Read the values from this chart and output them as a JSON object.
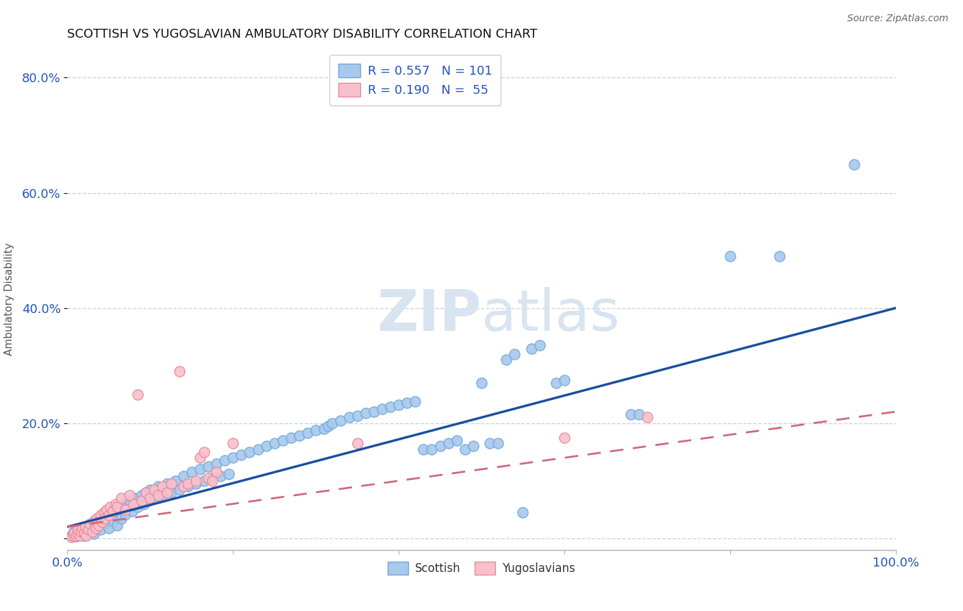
{
  "title": "SCOTTISH VS YUGOSLAVIAN AMBULATORY DISABILITY CORRELATION CHART",
  "source": "Source: ZipAtlas.com",
  "ylabel": "Ambulatory Disability",
  "xlim": [
    0,
    1.0
  ],
  "ylim": [
    -0.02,
    0.85
  ],
  "legend_R_scottish": "R = 0.557",
  "legend_N_scottish": "N = 101",
  "legend_R_yugo": "R = 0.190",
  "legend_N_yugo": "N =  55",
  "scottish_color": "#a8c8ec",
  "scottish_edge": "#6ea8dc",
  "yugo_color": "#f8c0cc",
  "yugo_edge": "#e88898",
  "line_scottish_color": "#1a4fa0",
  "line_yugo_color": "#d06878",
  "watermark_color": "#d8e4f0",
  "slope_scot": 0.38,
  "intercept_scot": 0.02,
  "slope_yugo": 0.2,
  "intercept_yugo": 0.02,
  "scottish_points": [
    [
      0.005,
      0.005
    ],
    [
      0.008,
      0.012
    ],
    [
      0.01,
      0.003
    ],
    [
      0.012,
      0.008
    ],
    [
      0.015,
      0.01
    ],
    [
      0.018,
      0.015
    ],
    [
      0.02,
      0.005
    ],
    [
      0.022,
      0.018
    ],
    [
      0.025,
      0.02
    ],
    [
      0.028,
      0.012
    ],
    [
      0.03,
      0.025
    ],
    [
      0.032,
      0.008
    ],
    [
      0.035,
      0.022
    ],
    [
      0.038,
      0.03
    ],
    [
      0.04,
      0.015
    ],
    [
      0.042,
      0.035
    ],
    [
      0.045,
      0.025
    ],
    [
      0.048,
      0.04
    ],
    [
      0.05,
      0.018
    ],
    [
      0.052,
      0.045
    ],
    [
      0.055,
      0.03
    ],
    [
      0.058,
      0.05
    ],
    [
      0.06,
      0.022
    ],
    [
      0.062,
      0.055
    ],
    [
      0.065,
      0.035
    ],
    [
      0.068,
      0.06
    ],
    [
      0.07,
      0.042
    ],
    [
      0.075,
      0.065
    ],
    [
      0.078,
      0.048
    ],
    [
      0.08,
      0.07
    ],
    [
      0.085,
      0.055
    ],
    [
      0.09,
      0.075
    ],
    [
      0.092,
      0.06
    ],
    [
      0.095,
      0.08
    ],
    [
      0.098,
      0.065
    ],
    [
      0.1,
      0.085
    ],
    [
      0.105,
      0.07
    ],
    [
      0.11,
      0.09
    ],
    [
      0.115,
      0.075
    ],
    [
      0.12,
      0.095
    ],
    [
      0.125,
      0.08
    ],
    [
      0.13,
      0.1
    ],
    [
      0.135,
      0.085
    ],
    [
      0.14,
      0.108
    ],
    [
      0.145,
      0.09
    ],
    [
      0.15,
      0.115
    ],
    [
      0.155,
      0.095
    ],
    [
      0.16,
      0.12
    ],
    [
      0.165,
      0.1
    ],
    [
      0.17,
      0.125
    ],
    [
      0.175,
      0.105
    ],
    [
      0.18,
      0.13
    ],
    [
      0.185,
      0.108
    ],
    [
      0.19,
      0.135
    ],
    [
      0.195,
      0.112
    ],
    [
      0.2,
      0.14
    ],
    [
      0.21,
      0.145
    ],
    [
      0.22,
      0.15
    ],
    [
      0.23,
      0.155
    ],
    [
      0.24,
      0.16
    ],
    [
      0.25,
      0.165
    ],
    [
      0.26,
      0.17
    ],
    [
      0.27,
      0.175
    ],
    [
      0.28,
      0.178
    ],
    [
      0.29,
      0.183
    ],
    [
      0.3,
      0.188
    ],
    [
      0.31,
      0.19
    ],
    [
      0.315,
      0.195
    ],
    [
      0.32,
      0.2
    ],
    [
      0.33,
      0.205
    ],
    [
      0.34,
      0.21
    ],
    [
      0.35,
      0.213
    ],
    [
      0.36,
      0.218
    ],
    [
      0.37,
      0.22
    ],
    [
      0.38,
      0.225
    ],
    [
      0.39,
      0.228
    ],
    [
      0.4,
      0.232
    ],
    [
      0.41,
      0.235
    ],
    [
      0.42,
      0.238
    ],
    [
      0.43,
      0.155
    ],
    [
      0.44,
      0.155
    ],
    [
      0.45,
      0.16
    ],
    [
      0.46,
      0.165
    ],
    [
      0.47,
      0.17
    ],
    [
      0.48,
      0.155
    ],
    [
      0.49,
      0.16
    ],
    [
      0.5,
      0.27
    ],
    [
      0.51,
      0.165
    ],
    [
      0.52,
      0.165
    ],
    [
      0.53,
      0.31
    ],
    [
      0.54,
      0.32
    ],
    [
      0.55,
      0.045
    ],
    [
      0.56,
      0.33
    ],
    [
      0.57,
      0.335
    ],
    [
      0.59,
      0.27
    ],
    [
      0.6,
      0.275
    ],
    [
      0.68,
      0.215
    ],
    [
      0.69,
      0.215
    ],
    [
      0.8,
      0.49
    ],
    [
      0.86,
      0.49
    ],
    [
      0.95,
      0.65
    ]
  ],
  "yugo_points": [
    [
      0.005,
      0.002
    ],
    [
      0.007,
      0.005
    ],
    [
      0.008,
      0.01
    ],
    [
      0.01,
      0.005
    ],
    [
      0.012,
      0.008
    ],
    [
      0.013,
      0.015
    ],
    [
      0.015,
      0.005
    ],
    [
      0.016,
      0.012
    ],
    [
      0.018,
      0.018
    ],
    [
      0.02,
      0.01
    ],
    [
      0.022,
      0.02
    ],
    [
      0.023,
      0.005
    ],
    [
      0.025,
      0.015
    ],
    [
      0.027,
      0.025
    ],
    [
      0.03,
      0.012
    ],
    [
      0.032,
      0.03
    ],
    [
      0.034,
      0.018
    ],
    [
      0.035,
      0.035
    ],
    [
      0.038,
      0.022
    ],
    [
      0.04,
      0.04
    ],
    [
      0.042,
      0.028
    ],
    [
      0.044,
      0.045
    ],
    [
      0.045,
      0.035
    ],
    [
      0.048,
      0.05
    ],
    [
      0.05,
      0.04
    ],
    [
      0.052,
      0.055
    ],
    [
      0.055,
      0.048
    ],
    [
      0.058,
      0.06
    ],
    [
      0.06,
      0.055
    ],
    [
      0.065,
      0.07
    ],
    [
      0.07,
      0.05
    ],
    [
      0.075,
      0.075
    ],
    [
      0.08,
      0.06
    ],
    [
      0.085,
      0.25
    ],
    [
      0.09,
      0.065
    ],
    [
      0.095,
      0.08
    ],
    [
      0.1,
      0.07
    ],
    [
      0.105,
      0.085
    ],
    [
      0.11,
      0.075
    ],
    [
      0.115,
      0.09
    ],
    [
      0.12,
      0.08
    ],
    [
      0.125,
      0.095
    ],
    [
      0.135,
      0.29
    ],
    [
      0.14,
      0.09
    ],
    [
      0.145,
      0.095
    ],
    [
      0.155,
      0.1
    ],
    [
      0.16,
      0.14
    ],
    [
      0.165,
      0.15
    ],
    [
      0.17,
      0.105
    ],
    [
      0.175,
      0.1
    ],
    [
      0.18,
      0.115
    ],
    [
      0.2,
      0.165
    ],
    [
      0.35,
      0.165
    ],
    [
      0.6,
      0.175
    ],
    [
      0.7,
      0.21
    ]
  ]
}
